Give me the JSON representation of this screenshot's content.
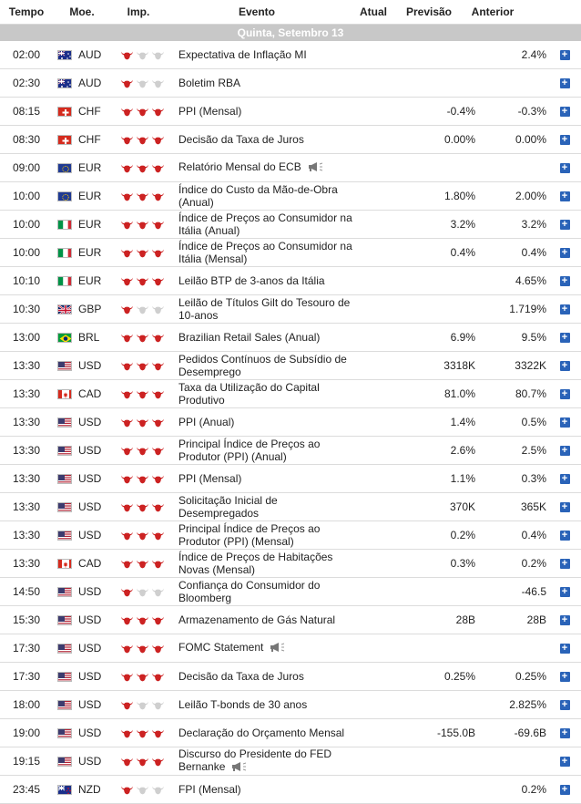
{
  "header": {
    "time": "Tempo",
    "currency": "Moe.",
    "importance": "Imp.",
    "event": "Evento",
    "actual": "Atual",
    "forecast": "Previsão",
    "previous": "Anterior"
  },
  "day_label": "Quinta, Setembro 13",
  "colors": {
    "bull_active": "#cc2222",
    "bull_inactive": "#cfcfcf",
    "add_button": "#2a63b8",
    "day_bar": "#c8c8c8"
  },
  "rows": [
    {
      "time": "02:00",
      "flag": "au",
      "currency": "AUD",
      "imp": 1,
      "event": "Expectativa de Inflação MI",
      "speech": false,
      "actual": "",
      "forecast": "",
      "previous": "2.4%"
    },
    {
      "time": "02:30",
      "flag": "au",
      "currency": "AUD",
      "imp": 1,
      "event": "Boletim RBA",
      "speech": false,
      "actual": "",
      "forecast": "",
      "previous": ""
    },
    {
      "time": "08:15",
      "flag": "ch",
      "currency": "CHF",
      "imp": 3,
      "event": "PPI (Mensal)",
      "speech": false,
      "actual": "",
      "forecast": "-0.4%",
      "previous": "-0.3%"
    },
    {
      "time": "08:30",
      "flag": "ch",
      "currency": "CHF",
      "imp": 3,
      "event": "Decisão da Taxa de Juros",
      "speech": false,
      "actual": "",
      "forecast": "0.00%",
      "previous": "0.00%"
    },
    {
      "time": "09:00",
      "flag": "eu",
      "currency": "EUR",
      "imp": 3,
      "event": "Relatório Mensal do ECB",
      "speech": true,
      "actual": "",
      "forecast": "",
      "previous": ""
    },
    {
      "time": "10:00",
      "flag": "eu",
      "currency": "EUR",
      "imp": 3,
      "event": "Índice do Custo da Mão-de-Obra (Anual)",
      "speech": false,
      "actual": "",
      "forecast": "1.80%",
      "previous": "2.00%"
    },
    {
      "time": "10:00",
      "flag": "it",
      "currency": "EUR",
      "imp": 3,
      "event": "Índice de Preços ao Consumidor na Itália (Anual)",
      "speech": false,
      "actual": "",
      "forecast": "3.2%",
      "previous": "3.2%"
    },
    {
      "time": "10:00",
      "flag": "it",
      "currency": "EUR",
      "imp": 3,
      "event": "Índice de Preços ao Consumidor na Itália (Mensal)",
      "speech": false,
      "actual": "",
      "forecast": "0.4%",
      "previous": "0.4%"
    },
    {
      "time": "10:10",
      "flag": "it",
      "currency": "EUR",
      "imp": 3,
      "event": "Leilão BTP de 3-anos da Itália",
      "speech": false,
      "actual": "",
      "forecast": "",
      "previous": "4.65%"
    },
    {
      "time": "10:30",
      "flag": "gb",
      "currency": "GBP",
      "imp": 1,
      "event": "Leilão de Títulos Gilt do Tesouro de 10-anos",
      "speech": false,
      "actual": "",
      "forecast": "",
      "previous": "1.719%"
    },
    {
      "time": "13:00",
      "flag": "br",
      "currency": "BRL",
      "imp": 3,
      "event": "Brazilian Retail Sales (Anual)",
      "speech": false,
      "actual": "",
      "forecast": "6.9%",
      "previous": "9.5%"
    },
    {
      "time": "13:30",
      "flag": "us",
      "currency": "USD",
      "imp": 3,
      "event": "Pedidos Contínuos de Subsídio de Desemprego",
      "speech": false,
      "actual": "",
      "forecast": "3318K",
      "previous": "3322K"
    },
    {
      "time": "13:30",
      "flag": "ca",
      "currency": "CAD",
      "imp": 3,
      "event": "Taxa da Utilização do Capital Produtivo",
      "speech": false,
      "actual": "",
      "forecast": "81.0%",
      "previous": "80.7%"
    },
    {
      "time": "13:30",
      "flag": "us",
      "currency": "USD",
      "imp": 3,
      "event": "PPI (Anual)",
      "speech": false,
      "actual": "",
      "forecast": "1.4%",
      "previous": "0.5%"
    },
    {
      "time": "13:30",
      "flag": "us",
      "currency": "USD",
      "imp": 3,
      "event": "Principal Índice de Preços ao Produtor (PPI) (Anual)",
      "speech": false,
      "actual": "",
      "forecast": "2.6%",
      "previous": "2.5%"
    },
    {
      "time": "13:30",
      "flag": "us",
      "currency": "USD",
      "imp": 3,
      "event": "PPI (Mensal)",
      "speech": false,
      "actual": "",
      "forecast": "1.1%",
      "previous": "0.3%"
    },
    {
      "time": "13:30",
      "flag": "us",
      "currency": "USD",
      "imp": 3,
      "event": "Solicitação Inicial de Desempregados",
      "speech": false,
      "actual": "",
      "forecast": "370K",
      "previous": "365K"
    },
    {
      "time": "13:30",
      "flag": "us",
      "currency": "USD",
      "imp": 3,
      "event": "Principal Índice de Preços ao Produtor (PPI) (Mensal)",
      "speech": false,
      "actual": "",
      "forecast": "0.2%",
      "previous": "0.4%"
    },
    {
      "time": "13:30",
      "flag": "ca",
      "currency": "CAD",
      "imp": 3,
      "event": "Índice de Preços de Habitações Novas (Mensal)",
      "speech": false,
      "actual": "",
      "forecast": "0.3%",
      "previous": "0.2%"
    },
    {
      "time": "14:50",
      "flag": "us",
      "currency": "USD",
      "imp": 1,
      "event": "Confiança do Consumidor do Bloomberg",
      "speech": false,
      "actual": "",
      "forecast": "",
      "previous": "-46.5"
    },
    {
      "time": "15:30",
      "flag": "us",
      "currency": "USD",
      "imp": 3,
      "event": "Armazenamento de Gás Natural",
      "speech": false,
      "actual": "",
      "forecast": "28B",
      "previous": "28B"
    },
    {
      "time": "17:30",
      "flag": "us",
      "currency": "USD",
      "imp": 3,
      "event": "FOMC Statement",
      "speech": true,
      "actual": "",
      "forecast": "",
      "previous": ""
    },
    {
      "time": "17:30",
      "flag": "us",
      "currency": "USD",
      "imp": 3,
      "event": "Decisão da Taxa de Juros",
      "speech": false,
      "actual": "",
      "forecast": "0.25%",
      "previous": "0.25%"
    },
    {
      "time": "18:00",
      "flag": "us",
      "currency": "USD",
      "imp": 1,
      "event": "Leilão T-bonds de 30 anos",
      "speech": false,
      "actual": "",
      "forecast": "",
      "previous": "2.825%"
    },
    {
      "time": "19:00",
      "flag": "us",
      "currency": "USD",
      "imp": 3,
      "event": "Declaração do Orçamento Mensal",
      "speech": false,
      "actual": "",
      "forecast": "-155.0B",
      "previous": "-69.6B"
    },
    {
      "time": "19:15",
      "flag": "us",
      "currency": "USD",
      "imp": 3,
      "event": "Discurso do Presidente do FED Bernanke",
      "speech": true,
      "actual": "",
      "forecast": "",
      "previous": ""
    },
    {
      "time": "23:45",
      "flag": "nz",
      "currency": "NZD",
      "imp": 1,
      "event": "FPI (Mensal)",
      "speech": false,
      "actual": "",
      "forecast": "",
      "previous": "0.2%"
    }
  ]
}
